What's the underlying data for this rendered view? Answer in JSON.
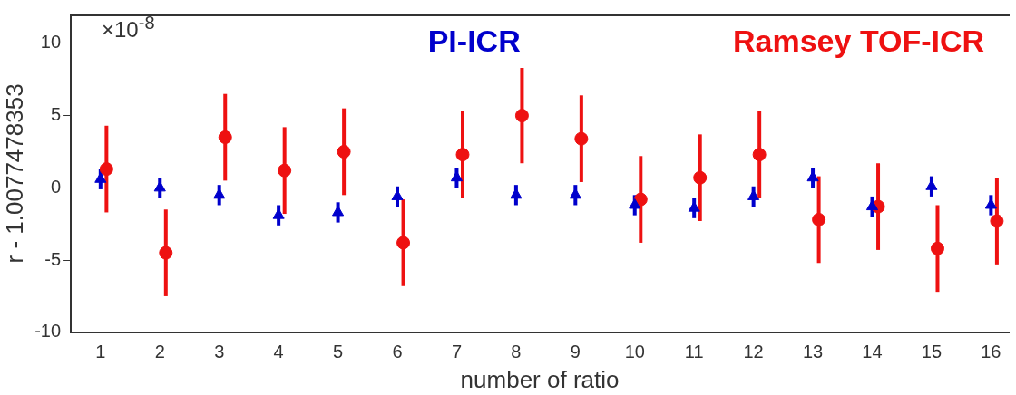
{
  "chart_data": {
    "type": "scatter",
    "xlabel": "number of ratio",
    "ylabel": "r - 1.0077478353",
    "annotations": [
      "×10$^{-8}$"
    ],
    "xlim": [
      0.5,
      16.3
    ],
    "xticks": [
      1,
      2,
      3,
      4,
      5,
      6,
      7,
      8,
      9,
      10,
      11,
      12,
      13,
      14,
      15,
      16
    ],
    "ylim": [
      -10,
      12
    ],
    "yticks": [
      -10,
      -5,
      0,
      5,
      10
    ],
    "grid": false,
    "legend": false,
    "series": [
      {
        "name": "PI-ICR",
        "color": "#0000cc",
        "marker": "triangle",
        "x": [
          1,
          2,
          3,
          4,
          5,
          6,
          7,
          8,
          9,
          10,
          11,
          12,
          13,
          14,
          15,
          16
        ],
        "values": [
          0.6,
          0,
          -0.5,
          -1.9,
          -1.7,
          -0.6,
          0.7,
          -0.5,
          -0.5,
          -1.2,
          -1.4,
          -0.6,
          0.7,
          -1.3,
          0.1,
          -1.2
        ],
        "errors": [
          0.7,
          0.7,
          0.7,
          0.7,
          0.7,
          0.7,
          0.7,
          0.7,
          0.7,
          0.7,
          0.7,
          0.7,
          0.7,
          0.7,
          0.7,
          0.7
        ]
      },
      {
        "name": "Ramsey TOF-ICR",
        "color": "#ee1111",
        "marker": "circle",
        "x": [
          1.1,
          2.1,
          3.1,
          4.1,
          5.1,
          6.1,
          7.1,
          8.1,
          9.1,
          10.1,
          11.1,
          12.1,
          13.1,
          14.1,
          15.1,
          16.1
        ],
        "values": [
          1.3,
          -4.5,
          3.5,
          1.2,
          2.5,
          -3.8,
          2.3,
          5,
          3.4,
          -0.8,
          0.7,
          2.3,
          -2.2,
          -1.3,
          -4.2,
          -2.3
        ],
        "errors": [
          3,
          3,
          3,
          3,
          3,
          3,
          3,
          3.3,
          3,
          3,
          3,
          3,
          3,
          3,
          3,
          3
        ]
      }
    ]
  }
}
